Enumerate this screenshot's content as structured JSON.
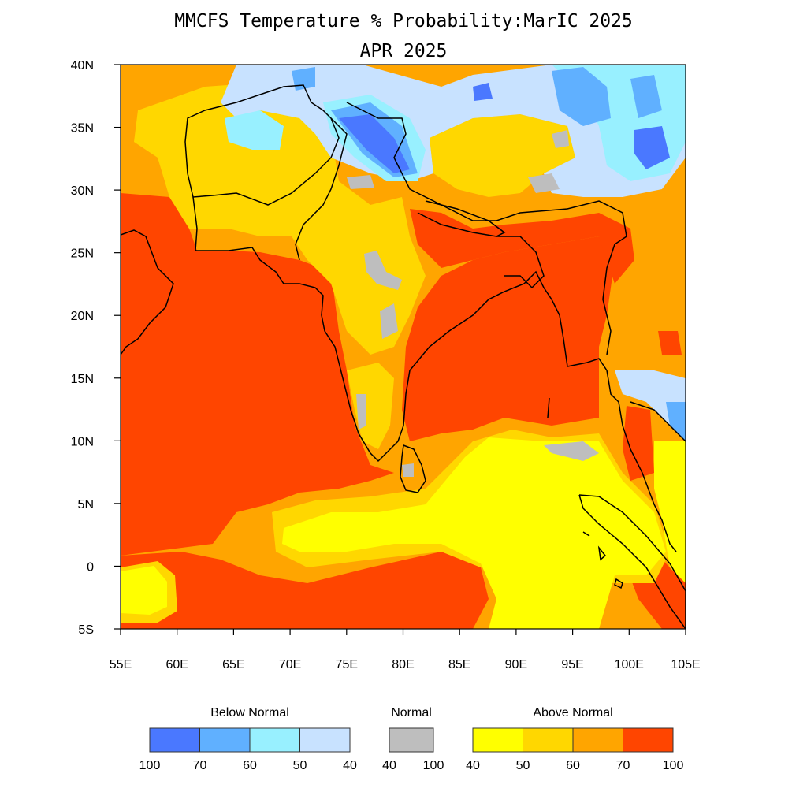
{
  "title": "MMCFS Temperature % Probability:MarIC 2025",
  "subtitle": "APR 2025",
  "axes": {
    "lon_min": 55,
    "lon_max": 105,
    "lat_min": -5,
    "lat_max": 40,
    "x_ticks": [
      {
        "value": 55,
        "label": "55E"
      },
      {
        "value": 60,
        "label": "60E"
      },
      {
        "value": 65,
        "label": "65E"
      },
      {
        "value": 70,
        "label": "70E"
      },
      {
        "value": 75,
        "label": "75E"
      },
      {
        "value": 80,
        "label": "80E"
      },
      {
        "value": 85,
        "label": "85E"
      },
      {
        "value": 90,
        "label": "90E"
      },
      {
        "value": 95,
        "label": "95E"
      },
      {
        "value": 100,
        "label": "100E"
      },
      {
        "value": 105,
        "label": "105E"
      }
    ],
    "y_ticks": [
      {
        "value": 40,
        "label": "40N"
      },
      {
        "value": 35,
        "label": "35N"
      },
      {
        "value": 30,
        "label": "30N"
      },
      {
        "value": 25,
        "label": "25N"
      },
      {
        "value": 20,
        "label": "20N"
      },
      {
        "value": 15,
        "label": "15N"
      },
      {
        "value": 10,
        "label": "10N"
      },
      {
        "value": 5,
        "label": "5N"
      },
      {
        "value": 0,
        "label": "0"
      },
      {
        "value": -5,
        "label": "5S"
      }
    ]
  },
  "colors": {
    "below_70_100": "#4a78ff",
    "below_60_70": "#60b0ff",
    "below_50_60": "#98f0ff",
    "below_40_50": "#c8e2ff",
    "normal": "#bebebe",
    "above_40_50": "#ffff00",
    "above_50_60": "#ffd700",
    "above_60_70": "#ffa500",
    "above_70_100": "#ff4500",
    "outline": "#000000"
  },
  "legend": {
    "groups": [
      {
        "name": "Below Normal",
        "swatches": [
          "#4a78ff",
          "#60b0ff",
          "#98f0ff",
          "#c8e2ff"
        ],
        "labels": [
          "100",
          "70",
          "60",
          "50",
          "40"
        ]
      },
      {
        "name": "Normal",
        "swatches": [
          "#bebebe"
        ],
        "labels": [
          "40",
          "100"
        ]
      },
      {
        "name": "Above Normal",
        "swatches": [
          "#ffff00",
          "#ffd700",
          "#ffa500",
          "#ff4500"
        ],
        "labels": [
          "40",
          "50",
          "60",
          "70",
          "100"
        ]
      }
    ]
  }
}
